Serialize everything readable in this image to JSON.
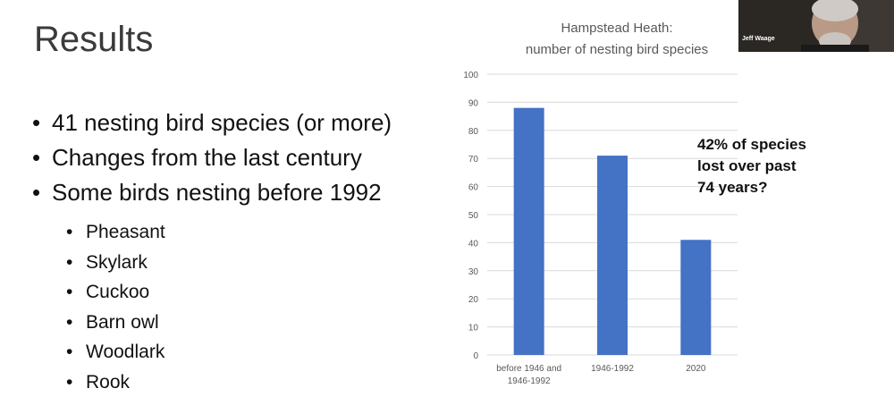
{
  "slide": {
    "title": "Results",
    "bullets": [
      "41 nesting bird species (or more)",
      "Changes from the last century",
      "Some birds nesting before 1992"
    ],
    "sub_bullets": [
      "Pheasant",
      "Skylark",
      "Cuckoo",
      "Barn owl",
      "Woodlark",
      "Rook"
    ],
    "bullet_glyph": "•"
  },
  "video": {
    "participant_name": "Jeff Waage"
  },
  "annotation": {
    "lines": [
      "42% of species",
      "lost over past",
      "74 years?"
    ]
  },
  "colors": {
    "bar": "#4472c4",
    "grid": "#d9d9d9",
    "axis_text": "#595959"
  },
  "chart_data": {
    "type": "bar",
    "title_lines": [
      "Hampstead Heath:",
      "number of nesting bird species"
    ],
    "categories": [
      "before 1946 and 1946-1992",
      "1946-1992",
      "2020"
    ],
    "category_label_lines": [
      [
        "before 1946 and",
        "1946-1992"
      ],
      [
        "1946-1992"
      ],
      [
        "2020"
      ]
    ],
    "values": [
      88,
      71,
      41
    ],
    "ylim": [
      0,
      100
    ],
    "yticks": [
      0,
      10,
      20,
      30,
      40,
      50,
      60,
      70,
      80,
      90,
      100
    ],
    "grid": true,
    "legend": "none"
  }
}
